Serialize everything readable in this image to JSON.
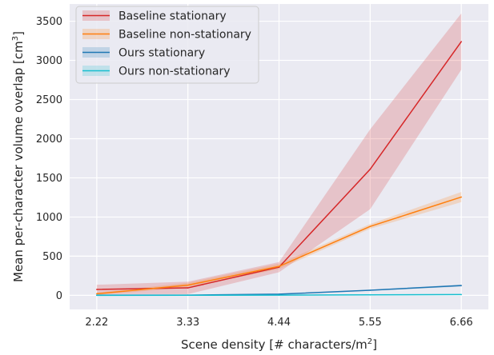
{
  "chart_data": {
    "type": "line",
    "x": [
      2.22,
      3.33,
      4.44,
      5.55,
      6.66
    ],
    "x_tick_labels": [
      "2.22",
      "3.33",
      "4.44",
      "5.55",
      "6.66"
    ],
    "xlim": [
      1.89,
      6.99
    ],
    "ylim": [
      -180,
      3720
    ],
    "y_ticks": [
      0,
      500,
      1000,
      1500,
      2000,
      2500,
      3000,
      3500
    ],
    "y_tick_labels": [
      "0",
      "500",
      "1000",
      "1500",
      "2000",
      "2500",
      "3000",
      "3500"
    ],
    "xlabel": {
      "pre": "Scene density [# characters/m",
      "sup": "2",
      "post": "]"
    },
    "ylabel": {
      "pre": "Mean per-character volume overlap [cm",
      "sup": "3",
      "post": "]"
    },
    "grid": true,
    "background": "#eaeaf2",
    "legend_position": "top-left",
    "series": [
      {
        "name": "Baseline stationary",
        "color": "#d62728",
        "values": [
          75,
          95,
          360,
          1610,
          3240
        ],
        "lower": [
          15,
          15,
          295,
          1100,
          2880
        ],
        "upper": [
          135,
          175,
          425,
          2120,
          3600
        ]
      },
      {
        "name": "Baseline non-stationary",
        "color": "#ff7f0e",
        "values": [
          20,
          130,
          370,
          880,
          1255
        ],
        "lower": [
          5,
          100,
          335,
          850,
          1190
        ],
        "upper": [
          35,
          160,
          405,
          910,
          1320
        ]
      },
      {
        "name": "Ours stationary",
        "color": "#1f77b4",
        "values": [
          2,
          3,
          15,
          65,
          125
        ],
        "lower": [
          0,
          1,
          10,
          58,
          112
        ],
        "upper": [
          4,
          5,
          20,
          72,
          138
        ]
      },
      {
        "name": "Ours non-stationary",
        "color": "#17becf",
        "values": [
          0,
          1,
          3,
          6,
          10
        ],
        "lower": [
          0,
          0,
          1,
          4,
          7
        ],
        "upper": [
          1,
          2,
          5,
          8,
          13
        ]
      }
    ]
  }
}
